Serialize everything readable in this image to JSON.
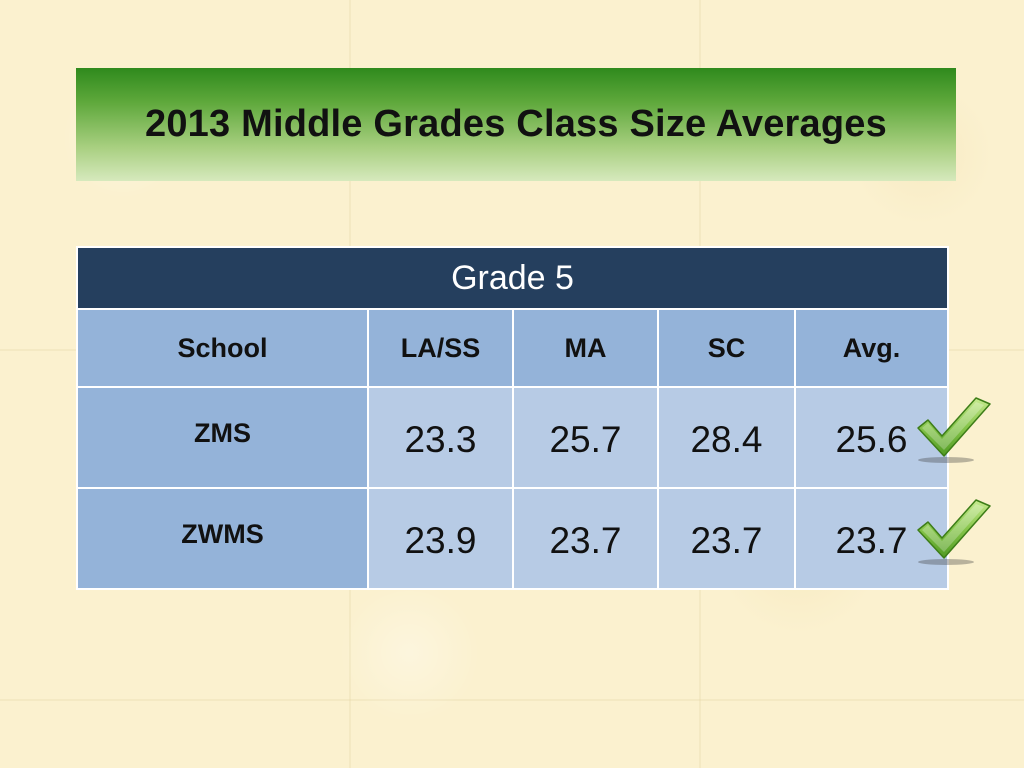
{
  "title": "2013 Middle Grades Class Size Averages",
  "table": {
    "caption": "Grade 5",
    "headers": [
      "School",
      "LA/SS",
      "MA",
      "SC",
      "Avg."
    ],
    "rows": [
      {
        "school": "ZMS",
        "la_ss": "23.3",
        "ma": "25.7",
        "sc": "28.4",
        "avg": "25.6"
      },
      {
        "school": "ZWMS",
        "la_ss": "23.9",
        "ma": "23.7",
        "sc": "23.7",
        "avg": "23.7"
      }
    ]
  },
  "icons": {
    "row_marker": "checkmark-icon"
  },
  "colors": {
    "banner_top": "#2f8a1d",
    "banner_bottom": "#d6e9bd",
    "table_header": "#253f5e",
    "label_cell": "#94b3d9",
    "value_cell": "#b7cbe5",
    "check_green": "#7cc142"
  }
}
